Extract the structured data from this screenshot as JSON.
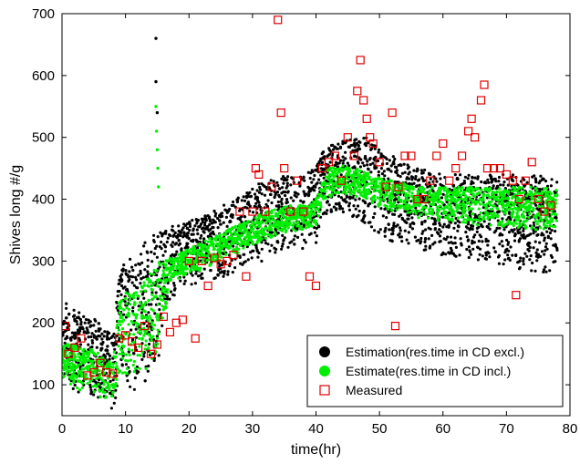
{
  "chart_data": {
    "type": "scatter",
    "title": "",
    "xlabel": "time(hr)",
    "ylabel": "Shives long  #/g",
    "xlim": [
      0,
      80
    ],
    "ylim": [
      50,
      700
    ],
    "xticks": [
      "0",
      "10",
      "20",
      "30",
      "40",
      "50",
      "60",
      "70",
      "80"
    ],
    "yticks": [
      "100",
      "200",
      "300",
      "400",
      "500",
      "600",
      "700"
    ],
    "grid": false,
    "legend_position": "bottom-right",
    "series": [
      {
        "name": "Estimation(res.time in CD excl.)",
        "color": "#000000",
        "marker": "filled-circle",
        "band": [
          [
            0,
            120,
            230
          ],
          [
            1,
            100,
            240
          ],
          [
            2,
            90,
            220
          ],
          [
            3,
            85,
            215
          ],
          [
            4,
            90,
            205
          ],
          [
            5,
            80,
            210
          ],
          [
            6,
            70,
            200
          ],
          [
            7,
            65,
            190
          ],
          [
            8,
            60,
            180
          ],
          [
            9,
            100,
            290
          ],
          [
            10,
            90,
            300
          ],
          [
            11,
            80,
            305
          ],
          [
            12,
            90,
            310
          ],
          [
            13,
            100,
            330
          ],
          [
            14,
            120,
            340
          ],
          [
            15,
            130,
            345
          ],
          [
            16,
            170,
            350
          ],
          [
            17,
            230,
            355
          ],
          [
            18,
            250,
            360
          ],
          [
            19,
            255,
            360
          ],
          [
            20,
            260,
            365
          ],
          [
            22,
            265,
            370
          ],
          [
            24,
            270,
            385
          ],
          [
            26,
            275,
            395
          ],
          [
            28,
            285,
            405
          ],
          [
            30,
            295,
            420
          ],
          [
            32,
            300,
            430
          ],
          [
            34,
            310,
            435
          ],
          [
            36,
            315,
            440
          ],
          [
            38,
            320,
            440
          ],
          [
            40,
            325,
            450
          ],
          [
            41,
            375,
            475
          ],
          [
            42,
            375,
            485
          ],
          [
            44,
            378,
            495
          ],
          [
            46,
            370,
            500
          ],
          [
            48,
            360,
            500
          ],
          [
            50,
            340,
            480
          ],
          [
            52,
            330,
            470
          ],
          [
            54,
            325,
            460
          ],
          [
            56,
            320,
            450
          ],
          [
            58,
            315,
            445
          ],
          [
            60,
            305,
            440
          ],
          [
            62,
            300,
            440
          ],
          [
            64,
            298,
            440
          ],
          [
            66,
            296,
            438
          ],
          [
            68,
            295,
            440
          ],
          [
            70,
            290,
            440
          ],
          [
            72,
            285,
            440
          ],
          [
            74,
            282,
            440
          ],
          [
            76,
            280,
            438
          ],
          [
            78,
            285,
            435
          ]
        ],
        "spikes": [
          [
            14.8,
            660
          ],
          [
            14.8,
            590
          ],
          [
            15,
            540
          ]
        ]
      },
      {
        "name": "Estimate(res.time in CD incl.)",
        "color": "#00ee00",
        "marker": "filled-circle",
        "band": [
          [
            0,
            110,
            160
          ],
          [
            1,
            100,
            170
          ],
          [
            2,
            95,
            165
          ],
          [
            3,
            90,
            160
          ],
          [
            4,
            95,
            155
          ],
          [
            5,
            85,
            160
          ],
          [
            6,
            80,
            150
          ],
          [
            7,
            75,
            140
          ],
          [
            8,
            75,
            135
          ],
          [
            9,
            120,
            240
          ],
          [
            10,
            110,
            250
          ],
          [
            11,
            100,
            255
          ],
          [
            12,
            110,
            250
          ],
          [
            13,
            120,
            270
          ],
          [
            14,
            130,
            280
          ],
          [
            15,
            150,
            300
          ],
          [
            16,
            200,
            300
          ],
          [
            17,
            260,
            305
          ],
          [
            18,
            270,
            310
          ],
          [
            19,
            275,
            315
          ],
          [
            20,
            280,
            320
          ],
          [
            22,
            285,
            330
          ],
          [
            24,
            295,
            340
          ],
          [
            26,
            305,
            350
          ],
          [
            28,
            315,
            360
          ],
          [
            30,
            325,
            370
          ],
          [
            32,
            335,
            380
          ],
          [
            34,
            340,
            385
          ],
          [
            36,
            345,
            390
          ],
          [
            38,
            350,
            390
          ],
          [
            40,
            355,
            400
          ],
          [
            41,
            395,
            445
          ],
          [
            42,
            400,
            450
          ],
          [
            44,
            410,
            455
          ],
          [
            46,
            405,
            450
          ],
          [
            48,
            400,
            445
          ],
          [
            50,
            385,
            435
          ],
          [
            52,
            380,
            430
          ],
          [
            54,
            375,
            425
          ],
          [
            56,
            370,
            420
          ],
          [
            58,
            368,
            420
          ],
          [
            60,
            365,
            420
          ],
          [
            62,
            362,
            420
          ],
          [
            64,
            360,
            420
          ],
          [
            66,
            358,
            418
          ],
          [
            68,
            355,
            418
          ],
          [
            70,
            355,
            420
          ],
          [
            72,
            352,
            420
          ],
          [
            74,
            350,
            420
          ],
          [
            76,
            350,
            418
          ],
          [
            78,
            350,
            415
          ]
        ],
        "spikes": [
          [
            14.8,
            550
          ],
          [
            14.9,
            510
          ],
          [
            15,
            480
          ],
          [
            15.1,
            450
          ],
          [
            15.2,
            420
          ]
        ]
      },
      {
        "name": "Measured",
        "color": "#e00000",
        "marker": "open-square",
        "points": [
          [
            0.5,
            195
          ],
          [
            1,
            150
          ],
          [
            2,
            160
          ],
          [
            3,
            175
          ],
          [
            4,
            115
          ],
          [
            5,
            120
          ],
          [
            6,
            135
          ],
          [
            7,
            120
          ],
          [
            8,
            118
          ],
          [
            9,
            175
          ],
          [
            10,
            180
          ],
          [
            11,
            170
          ],
          [
            12,
            160
          ],
          [
            13,
            195
          ],
          [
            14,
            150
          ],
          [
            15,
            165
          ],
          [
            16,
            210
          ],
          [
            17,
            185
          ],
          [
            18,
            200
          ],
          [
            19,
            205
          ],
          [
            20,
            300
          ],
          [
            21,
            175
          ],
          [
            22,
            300
          ],
          [
            23,
            260
          ],
          [
            24,
            305
          ],
          [
            25,
            295
          ],
          [
            26,
            300
          ],
          [
            27,
            310
          ],
          [
            28,
            380
          ],
          [
            29,
            275
          ],
          [
            30,
            380
          ],
          [
            30.5,
            450
          ],
          [
            31,
            440
          ],
          [
            32,
            380
          ],
          [
            33,
            420
          ],
          [
            34,
            690
          ],
          [
            34.5,
            540
          ],
          [
            35,
            450
          ],
          [
            36,
            380
          ],
          [
            37,
            430
          ],
          [
            38,
            380
          ],
          [
            39,
            275
          ],
          [
            40,
            260
          ],
          [
            41,
            450
          ],
          [
            42,
            460
          ],
          [
            43,
            470
          ],
          [
            44,
            430
          ],
          [
            45,
            500
          ],
          [
            46,
            470
          ],
          [
            46.5,
            575
          ],
          [
            47,
            625
          ],
          [
            47.5,
            560
          ],
          [
            48,
            530
          ],
          [
            48.5,
            500
          ],
          [
            49,
            490
          ],
          [
            50,
            460
          ],
          [
            51,
            420
          ],
          [
            52,
            540
          ],
          [
            52.5,
            195
          ],
          [
            53,
            420
          ],
          [
            54,
            470
          ],
          [
            55,
            470
          ],
          [
            56,
            400
          ],
          [
            57,
            400
          ],
          [
            58,
            430
          ],
          [
            59,
            470
          ],
          [
            60,
            490
          ],
          [
            61,
            430
          ],
          [
            62,
            450
          ],
          [
            63,
            470
          ],
          [
            64,
            510
          ],
          [
            64.5,
            530
          ],
          [
            65,
            500
          ],
          [
            66,
            560
          ],
          [
            66.5,
            585
          ],
          [
            67,
            450
          ],
          [
            68,
            450
          ],
          [
            69,
            450
          ],
          [
            70,
            440
          ],
          [
            71,
            430
          ],
          [
            71.5,
            245
          ],
          [
            72,
            400
          ],
          [
            73,
            430
          ],
          [
            74,
            460
          ],
          [
            75,
            400
          ],
          [
            76,
            380
          ],
          [
            77,
            390
          ]
        ]
      }
    ]
  }
}
